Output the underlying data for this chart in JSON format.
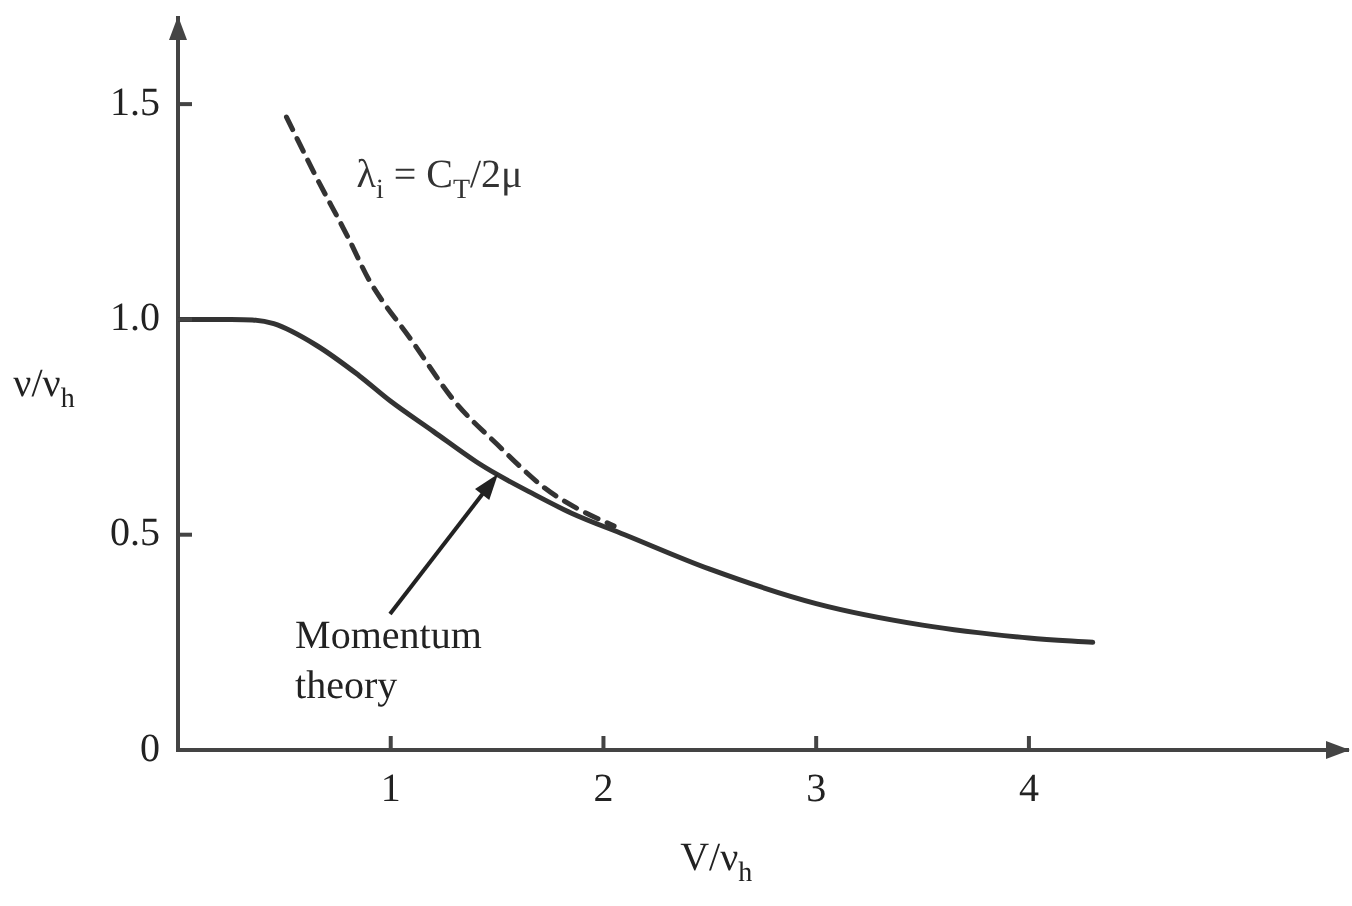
{
  "chart_data": {
    "type": "line",
    "xlabel": "V/ν$_{h}$",
    "ylabel": "ν/ν$_{h}$",
    "xlim": [
      0,
      5.5
    ],
    "xticks": [
      1,
      2,
      3,
      4
    ],
    "ylim": [
      0,
      1.7
    ],
    "yticks": [
      0,
      0.5,
      {
        "value": 1,
        "label": "1.0"
      },
      1.5
    ],
    "series": [
      {
        "color": "#333333",
        "line_style": "solid",
        "x": [
          0,
          0.25,
          0.45,
          0.65,
          0.85,
          1.0,
          1.2,
          1.4,
          1.5,
          1.65,
          1.85,
          2.1,
          2.5,
          3.0,
          3.5,
          4.0,
          4.3
        ],
        "values": [
          1.0,
          1.0,
          0.99,
          0.94,
          0.87,
          0.81,
          0.74,
          0.67,
          0.64,
          0.6,
          0.55,
          0.5,
          0.42,
          0.34,
          0.29,
          0.26,
          0.25
        ]
      },
      {
        "name": "λ$_{i}$ = C$_{T}$/2μ",
        "color": "#333333",
        "line_style": "dashed",
        "x": [
          0.51,
          0.64,
          0.8,
          0.9,
          1.1,
          1.3,
          1.5,
          1.72,
          1.88,
          2.05
        ],
        "values": [
          1.47,
          1.34,
          1.19,
          1.09,
          0.95,
          0.81,
          0.71,
          0.61,
          0.56,
          0.52
        ]
      }
    ],
    "annotations": [
      "Momentum theory"
    ]
  }
}
